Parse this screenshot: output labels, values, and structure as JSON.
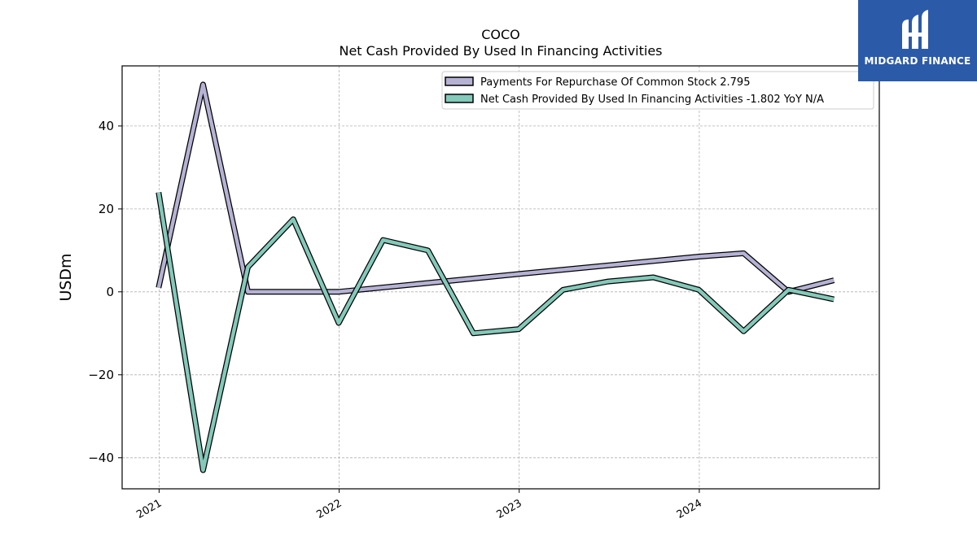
{
  "chart_data": {
    "type": "line",
    "title": "COCO",
    "subtitle": "Net Cash Provided By Used In Financing Activities",
    "xlabel": "",
    "ylabel": "USDm",
    "x_ticks": [
      "2021",
      "2022",
      "2023",
      "2024"
    ],
    "y_ticks": [
      -40,
      -20,
      0,
      20,
      40
    ],
    "xlim": [
      "2020-10-18",
      "2024-12-31"
    ],
    "ylim": [
      -47.5,
      54.5
    ],
    "grid": true,
    "legend_position": "top-right",
    "series": [
      {
        "name": "Payments For Repurchase Of Common Stock",
        "legend_label": "Payments For Repurchase Of Common Stock  2.795",
        "color": "#b5b2d4",
        "points": [
          [
            "2020-12-31",
            1.0
          ],
          [
            "2021-03-31",
            50.0
          ],
          [
            "2021-06-30",
            0.0
          ],
          [
            "2021-09-30",
            0.0
          ],
          [
            "2021-12-31",
            0.0
          ],
          [
            "2022-12-31",
            4.3
          ],
          [
            "2023-12-31",
            8.5
          ],
          [
            "2024-03-31",
            9.3
          ],
          [
            "2024-06-30",
            0.0
          ],
          [
            "2024-09-30",
            2.795
          ]
        ]
      },
      {
        "name": "Net Cash Provided By Used In Financing Activities",
        "legend_label": "Net Cash Provided By Used In Financing Activities  -1.802 YoY N/A",
        "color": "#84c9b9",
        "points": [
          [
            "2020-12-31",
            24.0
          ],
          [
            "2021-03-31",
            -43.0
          ],
          [
            "2021-06-30",
            6.0
          ],
          [
            "2021-09-30",
            17.5
          ],
          [
            "2021-12-31",
            -7.5
          ],
          [
            "2022-03-31",
            12.5
          ],
          [
            "2022-06-30",
            10.0
          ],
          [
            "2022-09-30",
            -10.0
          ],
          [
            "2022-12-31",
            -9.0
          ],
          [
            "2023-03-31",
            0.5
          ],
          [
            "2023-06-30",
            2.5
          ],
          [
            "2023-09-30",
            3.5
          ],
          [
            "2023-12-31",
            0.5
          ],
          [
            "2024-03-31",
            -9.5
          ],
          [
            "2024-06-30",
            0.5
          ],
          [
            "2024-09-30",
            -1.802
          ]
        ]
      }
    ]
  },
  "logo": {
    "text": "MIDGARD FINANCE",
    "background": "#2b5aa8",
    "icon": "midgard-mark-icon"
  }
}
